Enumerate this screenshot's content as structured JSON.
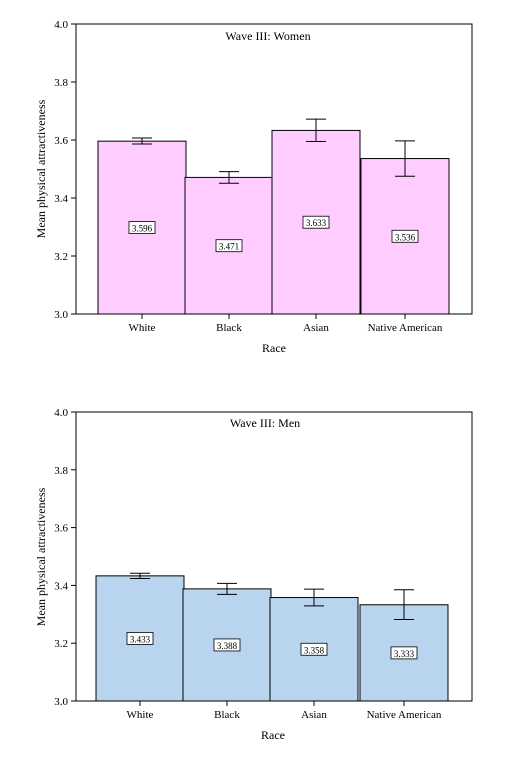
{
  "chart_data": [
    {
      "type": "bar",
      "title": "Wave III:  Women",
      "xlabel": "Race",
      "ylabel": "Mean physical attractiveness",
      "ylim": [
        3.0,
        4.0
      ],
      "yticks": [
        "3.0",
        "3.2",
        "3.4",
        "3.6",
        "3.8",
        "4.0"
      ],
      "categories": [
        "White",
        "Black",
        "Asian",
        "Native American"
      ],
      "values": [
        3.596,
        3.471,
        3.633,
        3.536
      ],
      "value_labels": [
        "3.596",
        "3.471",
        "3.633",
        "3.536"
      ],
      "error_low": [
        3.586,
        3.451,
        3.595,
        3.475
      ],
      "error_high": [
        3.607,
        3.491,
        3.672,
        3.597
      ],
      "bar_color": "#ffccff",
      "grid": false
    },
    {
      "type": "bar",
      "title": "Wave III:  Men",
      "xlabel": "Race",
      "ylabel": "Mean physical attractiveness",
      "ylim": [
        3.0,
        4.0
      ],
      "yticks": [
        "3.0",
        "3.2",
        "3.4",
        "3.6",
        "3.8",
        "4.0"
      ],
      "categories": [
        "White",
        "Black",
        "Asian",
        "Native American"
      ],
      "values": [
        3.433,
        3.388,
        3.358,
        3.333
      ],
      "value_labels": [
        "3.433",
        "3.388",
        "3.358",
        "3.333"
      ],
      "error_low": [
        3.424,
        3.369,
        3.329,
        3.282
      ],
      "error_high": [
        3.442,
        3.407,
        3.387,
        3.385
      ],
      "bar_color": "#b8d4ee",
      "grid": false
    }
  ]
}
